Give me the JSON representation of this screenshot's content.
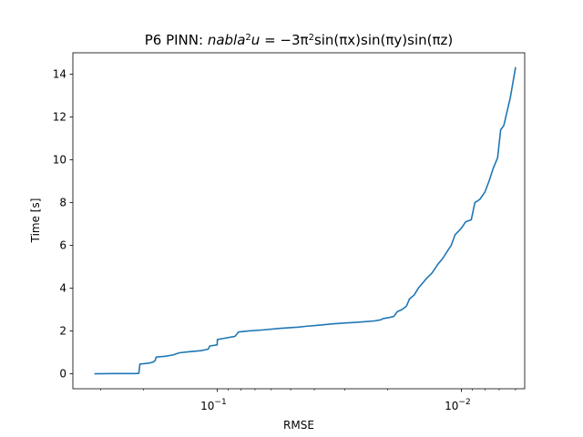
{
  "chart_data": {
    "type": "line",
    "title": {
      "prefix": "P6 PINN: ",
      "equation_left": "nabla",
      "equation_left_sup": "2",
      "equation_var": "u",
      "equation_rest": " = −3π",
      "equation_rest_sup": "2",
      "equation_tail": "sin(πx)sin(πy)sin(πz)"
    },
    "xlabel": "RMSE",
    "ylabel": "Time [s]",
    "x_scale": "log",
    "x_inverted": true,
    "xlim": [
      0.39,
      0.0055
    ],
    "ylim": [
      -0.7,
      15.0
    ],
    "x_ticks": [
      {
        "value": 0.1,
        "base": "10",
        "exp": "−1"
      },
      {
        "value": 0.01,
        "base": "10",
        "exp": "−2"
      }
    ],
    "y_ticks": [
      {
        "value": 0,
        "label": "0"
      },
      {
        "value": 2,
        "label": "2"
      },
      {
        "value": 4,
        "label": "4"
      },
      {
        "value": 6,
        "label": "6"
      },
      {
        "value": 8,
        "label": "8"
      },
      {
        "value": 10,
        "label": "10"
      },
      {
        "value": 12,
        "label": "12"
      },
      {
        "value": 14,
        "label": "14"
      }
    ],
    "series": [
      {
        "name": "PINN",
        "color": "#1f77b4",
        "points": [
          [
            0.3162,
            0.0
          ],
          [
            0.2614,
            0.01
          ],
          [
            0.2163,
            0.01
          ],
          [
            0.2094,
            0.02
          ],
          [
            0.2073,
            0.45
          ],
          [
            0.1899,
            0.5
          ],
          [
            0.1826,
            0.55
          ],
          [
            0.1795,
            0.62
          ],
          [
            0.1778,
            0.78
          ],
          [
            0.1628,
            0.82
          ],
          [
            0.1517,
            0.88
          ],
          [
            0.1428,
            0.98
          ],
          [
            0.13,
            1.03
          ],
          [
            0.1165,
            1.08
          ],
          [
            0.1088,
            1.15
          ],
          [
            0.1072,
            1.3
          ],
          [
            0.1,
            1.35
          ],
          [
            0.0998,
            1.6
          ],
          [
            0.0942,
            1.65
          ],
          [
            0.0845,
            1.75
          ],
          [
            0.0818,
            1.95
          ],
          [
            0.0747,
            2.0
          ],
          [
            0.0648,
            2.05
          ],
          [
            0.0554,
            2.12
          ],
          [
            0.0465,
            2.18
          ],
          [
            0.0432,
            2.22
          ],
          [
            0.0382,
            2.27
          ],
          [
            0.034,
            2.33
          ],
          [
            0.0301,
            2.37
          ],
          [
            0.0258,
            2.42
          ],
          [
            0.0227,
            2.47
          ],
          [
            0.0214,
            2.52
          ],
          [
            0.0209,
            2.58
          ],
          [
            0.0199,
            2.62
          ],
          [
            0.0189,
            2.68
          ],
          [
            0.0183,
            2.9
          ],
          [
            0.0175,
            3.0
          ],
          [
            0.0168,
            3.15
          ],
          [
            0.0163,
            3.5
          ],
          [
            0.0156,
            3.68
          ],
          [
            0.015,
            4.0
          ],
          [
            0.0145,
            4.2
          ],
          [
            0.0139,
            4.45
          ],
          [
            0.0132,
            4.7
          ],
          [
            0.0125,
            5.1
          ],
          [
            0.0119,
            5.4
          ],
          [
            0.0113,
            5.8
          ],
          [
            0.011,
            6.0
          ],
          [
            0.0106,
            6.5
          ],
          [
            0.01,
            6.8
          ],
          [
            0.0096,
            7.1
          ],
          [
            0.0091,
            7.2
          ],
          [
            0.0088,
            8.0
          ],
          [
            0.0084,
            8.15
          ],
          [
            0.008,
            8.5
          ],
          [
            0.0077,
            9.0
          ],
          [
            0.0074,
            9.6
          ],
          [
            0.0071,
            10.1
          ],
          [
            0.0069,
            11.4
          ],
          [
            0.0067,
            11.6
          ],
          [
            0.0063,
            12.9
          ],
          [
            0.006,
            14.3
          ]
        ]
      }
    ],
    "grid": false,
    "legend": "none"
  }
}
